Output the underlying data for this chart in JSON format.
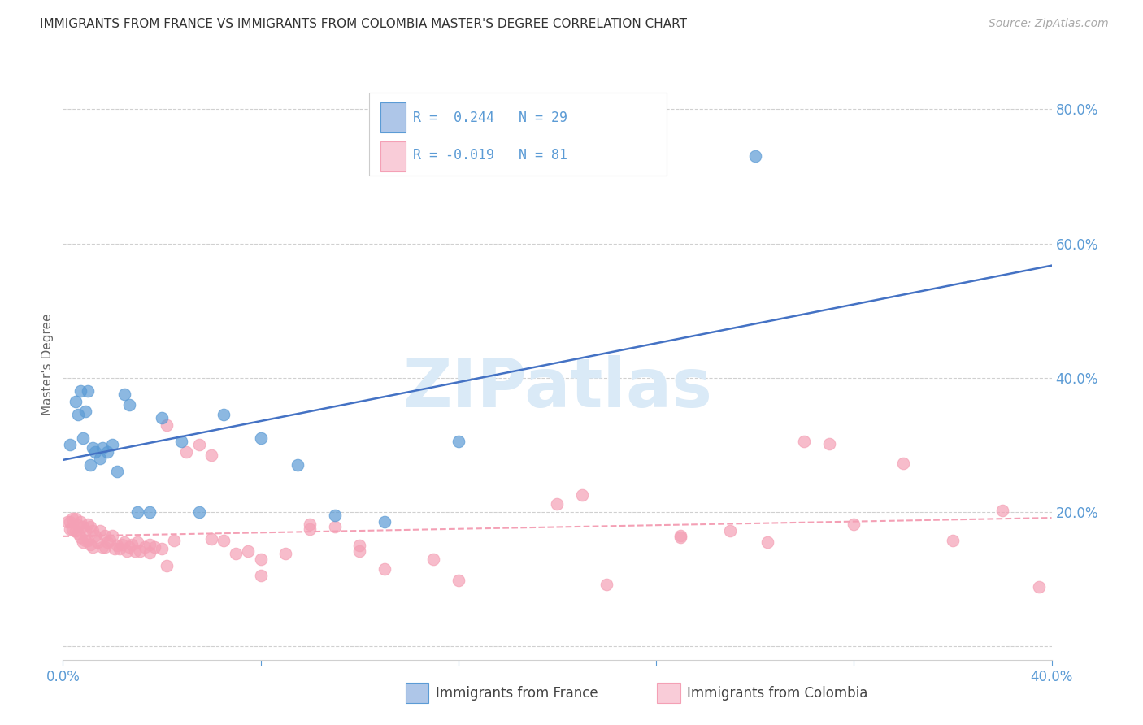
{
  "title": "IMMIGRANTS FROM FRANCE VS IMMIGRANTS FROM COLOMBIA MASTER'S DEGREE CORRELATION CHART",
  "source": "Source: ZipAtlas.com",
  "ylabel": "Master's Degree",
  "xmin": 0.0,
  "xmax": 0.4,
  "ymin": -0.02,
  "ymax": 0.86,
  "yticks": [
    0.0,
    0.2,
    0.4,
    0.6,
    0.8
  ],
  "ytick_labels": [
    "",
    "20.0%",
    "40.0%",
    "60.0%",
    "80.0%"
  ],
  "xticks": [
    0.0,
    0.08,
    0.16,
    0.24,
    0.32,
    0.4
  ],
  "xtick_labels": [
    "0.0%",
    "",
    "",
    "",
    "",
    "40.0%"
  ],
  "france_color": "#5b9bd5",
  "colombia_color": "#f4a0b5",
  "france_line_color": "#4472c4",
  "colombia_line_color": "#f4a0b5",
  "france_R": 0.244,
  "france_N": 29,
  "colombia_R": -0.019,
  "colombia_N": 81,
  "france_scatter_x": [
    0.003,
    0.005,
    0.006,
    0.007,
    0.008,
    0.009,
    0.01,
    0.011,
    0.012,
    0.013,
    0.015,
    0.016,
    0.018,
    0.02,
    0.022,
    0.025,
    0.027,
    0.03,
    0.035,
    0.04,
    0.048,
    0.055,
    0.065,
    0.08,
    0.095,
    0.11,
    0.13,
    0.16,
    0.28
  ],
  "france_scatter_y": [
    0.3,
    0.365,
    0.345,
    0.38,
    0.31,
    0.35,
    0.38,
    0.27,
    0.295,
    0.29,
    0.28,
    0.295,
    0.29,
    0.3,
    0.26,
    0.375,
    0.36,
    0.2,
    0.2,
    0.34,
    0.305,
    0.2,
    0.345,
    0.31,
    0.27,
    0.195,
    0.185,
    0.305,
    0.73
  ],
  "colombia_scatter_x": [
    0.002,
    0.003,
    0.003,
    0.004,
    0.004,
    0.005,
    0.005,
    0.006,
    0.006,
    0.007,
    0.007,
    0.008,
    0.008,
    0.009,
    0.009,
    0.01,
    0.01,
    0.011,
    0.011,
    0.012,
    0.012,
    0.013,
    0.014,
    0.015,
    0.016,
    0.017,
    0.017,
    0.018,
    0.019,
    0.02,
    0.021,
    0.022,
    0.023,
    0.024,
    0.025,
    0.026,
    0.027,
    0.028,
    0.029,
    0.03,
    0.031,
    0.033,
    0.035,
    0.037,
    0.04,
    0.042,
    0.045,
    0.05,
    0.055,
    0.06,
    0.065,
    0.07,
    0.075,
    0.08,
    0.09,
    0.1,
    0.11,
    0.12,
    0.13,
    0.15,
    0.16,
    0.2,
    0.22,
    0.25,
    0.27,
    0.285,
    0.3,
    0.32,
    0.34,
    0.36,
    0.38,
    0.395,
    0.035,
    0.042,
    0.06,
    0.08,
    0.1,
    0.12,
    0.21,
    0.25,
    0.31
  ],
  "colombia_scatter_y": [
    0.185,
    0.185,
    0.175,
    0.19,
    0.175,
    0.19,
    0.172,
    0.18,
    0.168,
    0.185,
    0.162,
    0.178,
    0.155,
    0.172,
    0.158,
    0.182,
    0.158,
    0.178,
    0.152,
    0.172,
    0.148,
    0.165,
    0.155,
    0.172,
    0.148,
    0.165,
    0.148,
    0.155,
    0.158,
    0.165,
    0.145,
    0.15,
    0.145,
    0.152,
    0.155,
    0.142,
    0.148,
    0.152,
    0.142,
    0.155,
    0.142,
    0.148,
    0.152,
    0.148,
    0.145,
    0.33,
    0.158,
    0.29,
    0.3,
    0.285,
    0.158,
    0.138,
    0.142,
    0.105,
    0.138,
    0.182,
    0.178,
    0.142,
    0.115,
    0.13,
    0.098,
    0.212,
    0.092,
    0.165,
    0.172,
    0.155,
    0.305,
    0.182,
    0.272,
    0.158,
    0.202,
    0.088,
    0.14,
    0.12,
    0.16,
    0.13,
    0.175,
    0.15,
    0.225,
    0.163,
    0.302
  ],
  "title_fontsize": 11,
  "source_fontsize": 10,
  "axis_color": "#5b9bd5",
  "tick_color": "#5b9bd5",
  "grid_color": "#d0d0d0",
  "watermark_text": "ZIPatlas",
  "watermark_color": "#daeaf7",
  "watermark_fontsize": 60,
  "legend_text_color": "#333333",
  "france_fill": "#aec6e8",
  "colombia_fill": "#f9ccd8"
}
